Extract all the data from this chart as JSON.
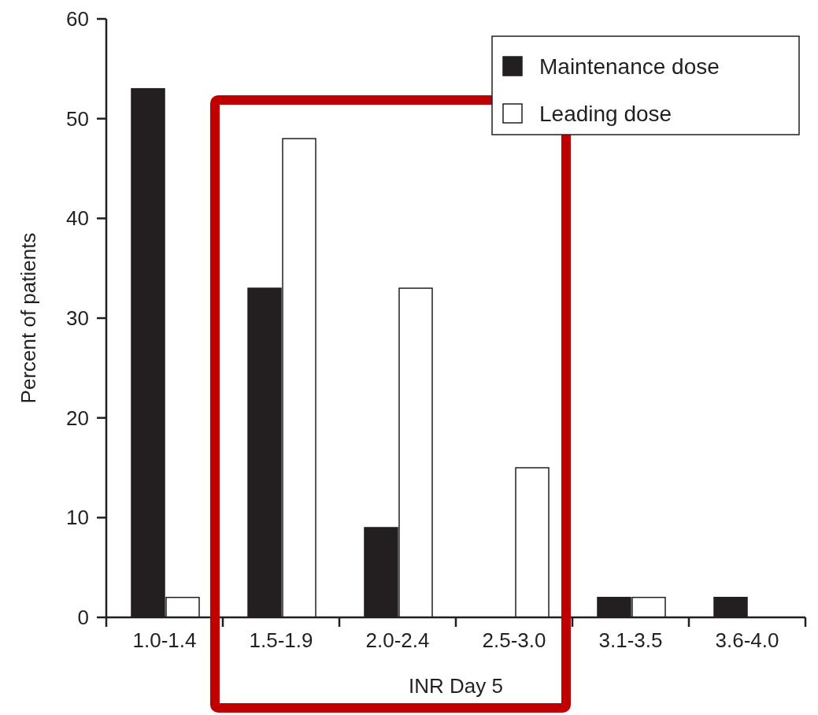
{
  "chart_data": {
    "type": "bar",
    "xlabel": "INR Day 5",
    "ylabel": "Percent of patients",
    "categories": [
      "1.0-1.4",
      "1.5-1.9",
      "2.0-2.4",
      "2.5-3.0",
      "3.1-3.5",
      "3.6-4.0"
    ],
    "series": [
      {
        "name": "Maintenance dose",
        "color": "#231f20",
        "values": [
          53,
          33,
          9,
          0,
          2,
          2
        ]
      },
      {
        "name": "Leading dose",
        "color": "#ffffff",
        "values": [
          2,
          48,
          33,
          15,
          2,
          0
        ]
      }
    ],
    "ylim": [
      0,
      60
    ],
    "yticks": [
      0,
      10,
      20,
      30,
      40,
      50,
      60
    ],
    "grid": false,
    "legend": "top right"
  }
}
